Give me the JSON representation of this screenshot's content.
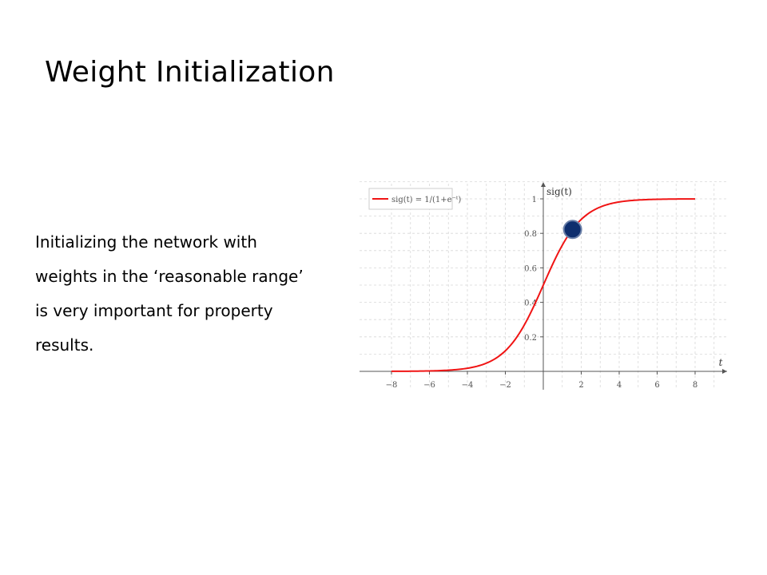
{
  "slide": {
    "title": "Weight Initialization",
    "body_lines": [
      "Initializing the network with",
      "weights in the ‘reasonable range’",
      "is very important for property",
      "results."
    ]
  },
  "colors": {
    "curve": "#f01414",
    "marker_fill": "#0e2e6e",
    "marker_stroke": "#6a7fa8",
    "grid": "#d8d8d8",
    "axis": "#555555"
  },
  "chart_data": {
    "type": "line",
    "xlabel": "t",
    "ylabel": "sig(t)",
    "xlim": [
      -8,
      8
    ],
    "ylim": [
      0,
      1
    ],
    "x_ticks": [
      "−8",
      "−6",
      "−4",
      "−2",
      "2",
      "4",
      "6",
      "8"
    ],
    "x_tick_values": [
      -8,
      -6,
      -4,
      -2,
      2,
      4,
      6,
      8
    ],
    "y_ticks": [
      "0.2",
      "0.4",
      "0.6",
      "0.8",
      "1"
    ],
    "y_tick_values": [
      0.2,
      0.4,
      0.6,
      0.8,
      1
    ],
    "grid": true,
    "legend_position": "top-left",
    "series": [
      {
        "name": "sig(t) = 1/(1+e⁻ᵗ)",
        "function": "sigmoid",
        "x": [
          -8,
          -6,
          -4,
          -3,
          -2,
          -1.5,
          -1,
          -0.5,
          0,
          0.5,
          1,
          1.5,
          2,
          3,
          4,
          6,
          8
        ],
        "y": [
          0.0003,
          0.0025,
          0.018,
          0.047,
          0.119,
          0.182,
          0.269,
          0.378,
          0.5,
          0.622,
          0.731,
          0.818,
          0.881,
          0.953,
          0.982,
          0.9975,
          0.9997
        ]
      }
    ],
    "highlight_point": {
      "x": 1.5,
      "y": 0.818
    }
  }
}
